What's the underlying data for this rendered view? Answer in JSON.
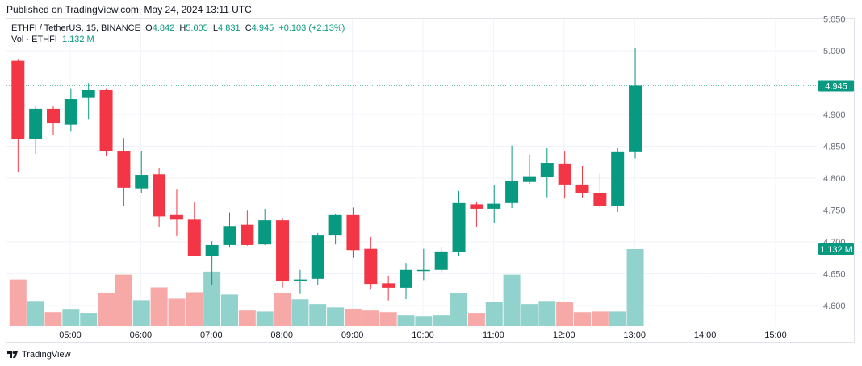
{
  "published": "Published on TradingView.com, May 24, 2024 13:11 UTC",
  "legend": {
    "symbol": "ETHFI / TetherUS, 15, BINANCE",
    "o_label": "O",
    "o": "4.842",
    "h_label": "H",
    "h": "5.005",
    "l_label": "L",
    "l": "4.831",
    "c_label": "C",
    "c": "4.945",
    "change": "+0.103 (+2.13%)",
    "vol_label": "Vol · ETHFI",
    "vol": "1.132 M"
  },
  "logo": "TradingView",
  "colors": {
    "up": "#089981",
    "down": "#f23645",
    "vol_up": "#92d2cc",
    "vol_down": "#f7a9a7",
    "grid": "#f0f3fa"
  },
  "chart_data": {
    "type": "candlestick",
    "interval": "15",
    "ylim": [
      4.565,
      5.05
    ],
    "yticks": [
      "5.050",
      "5.000",
      "4.900",
      "4.850",
      "4.800",
      "4.750",
      "4.700",
      "4.650",
      "4.600"
    ],
    "xticks": [
      "05:00",
      "06:00",
      "07:00",
      "08:00",
      "09:00",
      "10:00",
      "11:00",
      "12:00",
      "13:00",
      "14:00",
      "15:00"
    ],
    "last_price": "4.945",
    "last_volume": "1.132 M",
    "grid": true,
    "candles": [
      {
        "t": "04:15",
        "o": 4.984,
        "h": 4.987,
        "l": 4.81,
        "c": 4.861,
        "v": 0.684
      },
      {
        "t": "04:30",
        "o": 4.862,
        "h": 4.913,
        "l": 4.838,
        "c": 4.909,
        "v": 0.366
      },
      {
        "t": "04:45",
        "o": 4.909,
        "h": 4.914,
        "l": 4.868,
        "c": 4.886,
        "v": 0.2
      },
      {
        "t": "05:00",
        "o": 4.884,
        "h": 4.941,
        "l": 4.873,
        "c": 4.924,
        "v": 0.248
      },
      {
        "t": "05:15",
        "o": 4.927,
        "h": 4.949,
        "l": 4.892,
        "c": 4.938,
        "v": 0.19
      },
      {
        "t": "05:30",
        "o": 4.938,
        "h": 4.941,
        "l": 4.835,
        "c": 4.843,
        "v": 0.48
      },
      {
        "t": "05:45",
        "o": 4.843,
        "h": 4.863,
        "l": 4.756,
        "c": 4.785,
        "v": 0.755
      },
      {
        "t": "06:00",
        "o": 4.784,
        "h": 4.843,
        "l": 4.776,
        "c": 4.805,
        "v": 0.377
      },
      {
        "t": "06:15",
        "o": 4.806,
        "h": 4.816,
        "l": 4.724,
        "c": 4.74,
        "v": 0.566
      },
      {
        "t": "06:30",
        "o": 4.742,
        "h": 4.782,
        "l": 4.709,
        "c": 4.735,
        "v": 0.4
      },
      {
        "t": "06:45",
        "o": 4.735,
        "h": 4.763,
        "l": 4.678,
        "c": 4.678,
        "v": 0.495
      },
      {
        "t": "07:00",
        "o": 4.678,
        "h": 4.701,
        "l": 4.632,
        "c": 4.695,
        "v": 0.8
      },
      {
        "t": "07:15",
        "o": 4.695,
        "h": 4.746,
        "l": 4.691,
        "c": 4.725,
        "v": 0.46
      },
      {
        "t": "07:30",
        "o": 4.727,
        "h": 4.749,
        "l": 4.694,
        "c": 4.695,
        "v": 0.224
      },
      {
        "t": "07:45",
        "o": 4.696,
        "h": 4.752,
        "l": 4.695,
        "c": 4.734,
        "v": 0.21
      },
      {
        "t": "08:00",
        "o": 4.734,
        "h": 4.738,
        "l": 4.628,
        "c": 4.639,
        "v": 0.48
      },
      {
        "t": "08:15",
        "o": 4.639,
        "h": 4.656,
        "l": 4.618,
        "c": 4.641,
        "v": 0.39
      },
      {
        "t": "08:30",
        "o": 4.642,
        "h": 4.714,
        "l": 4.632,
        "c": 4.71,
        "v": 0.32
      },
      {
        "t": "08:45",
        "o": 4.71,
        "h": 4.744,
        "l": 4.696,
        "c": 4.742,
        "v": 0.27
      },
      {
        "t": "09:00",
        "o": 4.742,
        "h": 4.754,
        "l": 4.675,
        "c": 4.687,
        "v": 0.25
      },
      {
        "t": "09:15",
        "o": 4.689,
        "h": 4.708,
        "l": 4.625,
        "c": 4.634,
        "v": 0.224
      },
      {
        "t": "09:30",
        "o": 4.635,
        "h": 4.647,
        "l": 4.608,
        "c": 4.628,
        "v": 0.2
      },
      {
        "t": "09:45",
        "o": 4.628,
        "h": 4.667,
        "l": 4.61,
        "c": 4.656,
        "v": 0.153
      },
      {
        "t": "10:00",
        "o": 4.655,
        "h": 4.689,
        "l": 4.64,
        "c": 4.656,
        "v": 0.14
      },
      {
        "t": "10:15",
        "o": 4.656,
        "h": 4.691,
        "l": 4.651,
        "c": 4.685,
        "v": 0.153
      },
      {
        "t": "10:30",
        "o": 4.684,
        "h": 4.78,
        "l": 4.678,
        "c": 4.761,
        "v": 0.48
      },
      {
        "t": "10:45",
        "o": 4.759,
        "h": 4.763,
        "l": 4.724,
        "c": 4.752,
        "v": 0.19
      },
      {
        "t": "11:00",
        "o": 4.752,
        "h": 4.789,
        "l": 4.73,
        "c": 4.76,
        "v": 0.354
      },
      {
        "t": "11:15",
        "o": 4.761,
        "h": 4.851,
        "l": 4.753,
        "c": 4.795,
        "v": 0.755
      },
      {
        "t": "11:30",
        "o": 4.794,
        "h": 4.837,
        "l": 4.791,
        "c": 4.803,
        "v": 0.32
      },
      {
        "t": "11:45",
        "o": 4.802,
        "h": 4.847,
        "l": 4.77,
        "c": 4.824,
        "v": 0.366
      },
      {
        "t": "12:00",
        "o": 4.823,
        "h": 4.843,
        "l": 4.768,
        "c": 4.79,
        "v": 0.354
      },
      {
        "t": "12:15",
        "o": 4.79,
        "h": 4.819,
        "l": 4.77,
        "c": 4.776,
        "v": 0.2
      },
      {
        "t": "12:30",
        "o": 4.776,
        "h": 4.809,
        "l": 4.753,
        "c": 4.756,
        "v": 0.21
      },
      {
        "t": "12:45",
        "o": 4.756,
        "h": 4.848,
        "l": 4.747,
        "c": 4.842,
        "v": 0.21
      },
      {
        "t": "13:00",
        "o": 4.842,
        "h": 5.005,
        "l": 4.831,
        "c": 4.945,
        "v": 1.132
      }
    ]
  }
}
